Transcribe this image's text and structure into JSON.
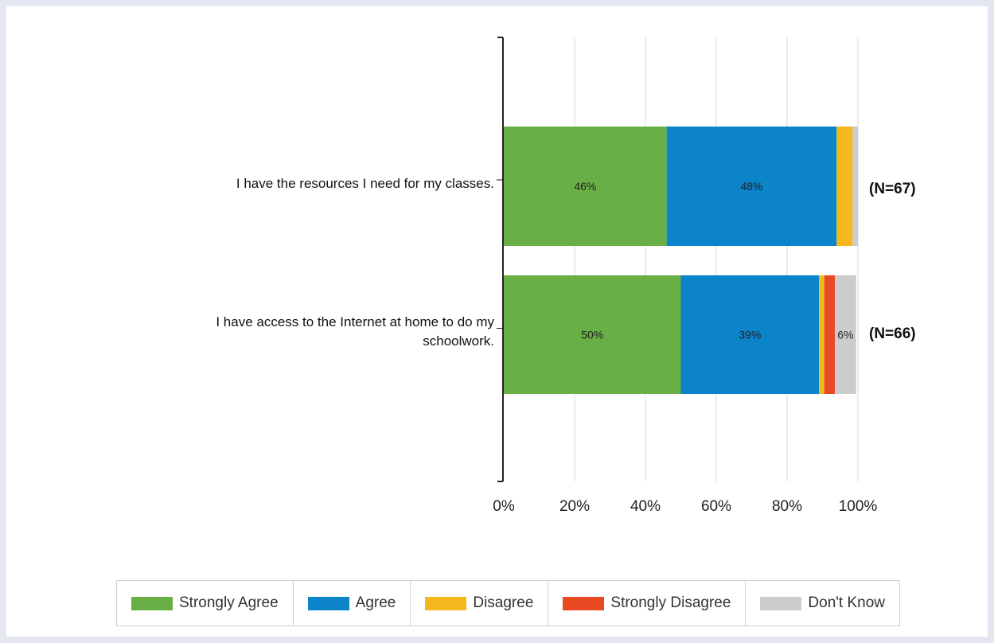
{
  "colors": {
    "Strongly Agree": "#68b045",
    "Agree": "#0b84c9",
    "Disagree": "#f4b71c",
    "Strongly Disagree": "#e84a24",
    "Don't Know": "#cccccc"
  },
  "chart_data": {
    "type": "bar",
    "orientation": "horizontal",
    "stacked": true,
    "categories": [
      "I have the resources I need for my classes.",
      "I have access to the Internet at home to do my schoolwork."
    ],
    "series": [
      {
        "name": "Strongly Agree",
        "values": [
          46,
          50
        ],
        "labels": [
          "46%",
          "50%"
        ]
      },
      {
        "name": "Agree",
        "values": [
          48,
          39
        ],
        "labels": [
          "48%",
          "39%"
        ]
      },
      {
        "name": "Disagree",
        "values": [
          4.5,
          1.5
        ],
        "labels": [
          "",
          ""
        ]
      },
      {
        "name": "Strongly Disagree",
        "values": [
          0,
          3
        ],
        "labels": [
          "",
          ""
        ]
      },
      {
        "name": "Don't Know",
        "values": [
          1.5,
          6
        ],
        "labels": [
          "",
          "6%"
        ]
      }
    ],
    "n_labels": [
      "(N=67)",
      "(N=66)"
    ],
    "x_ticks": [
      "0%",
      "20%",
      "40%",
      "60%",
      "80%",
      "100%"
    ],
    "xlim": [
      0,
      100
    ],
    "grid": true,
    "legend_position": "bottom"
  }
}
